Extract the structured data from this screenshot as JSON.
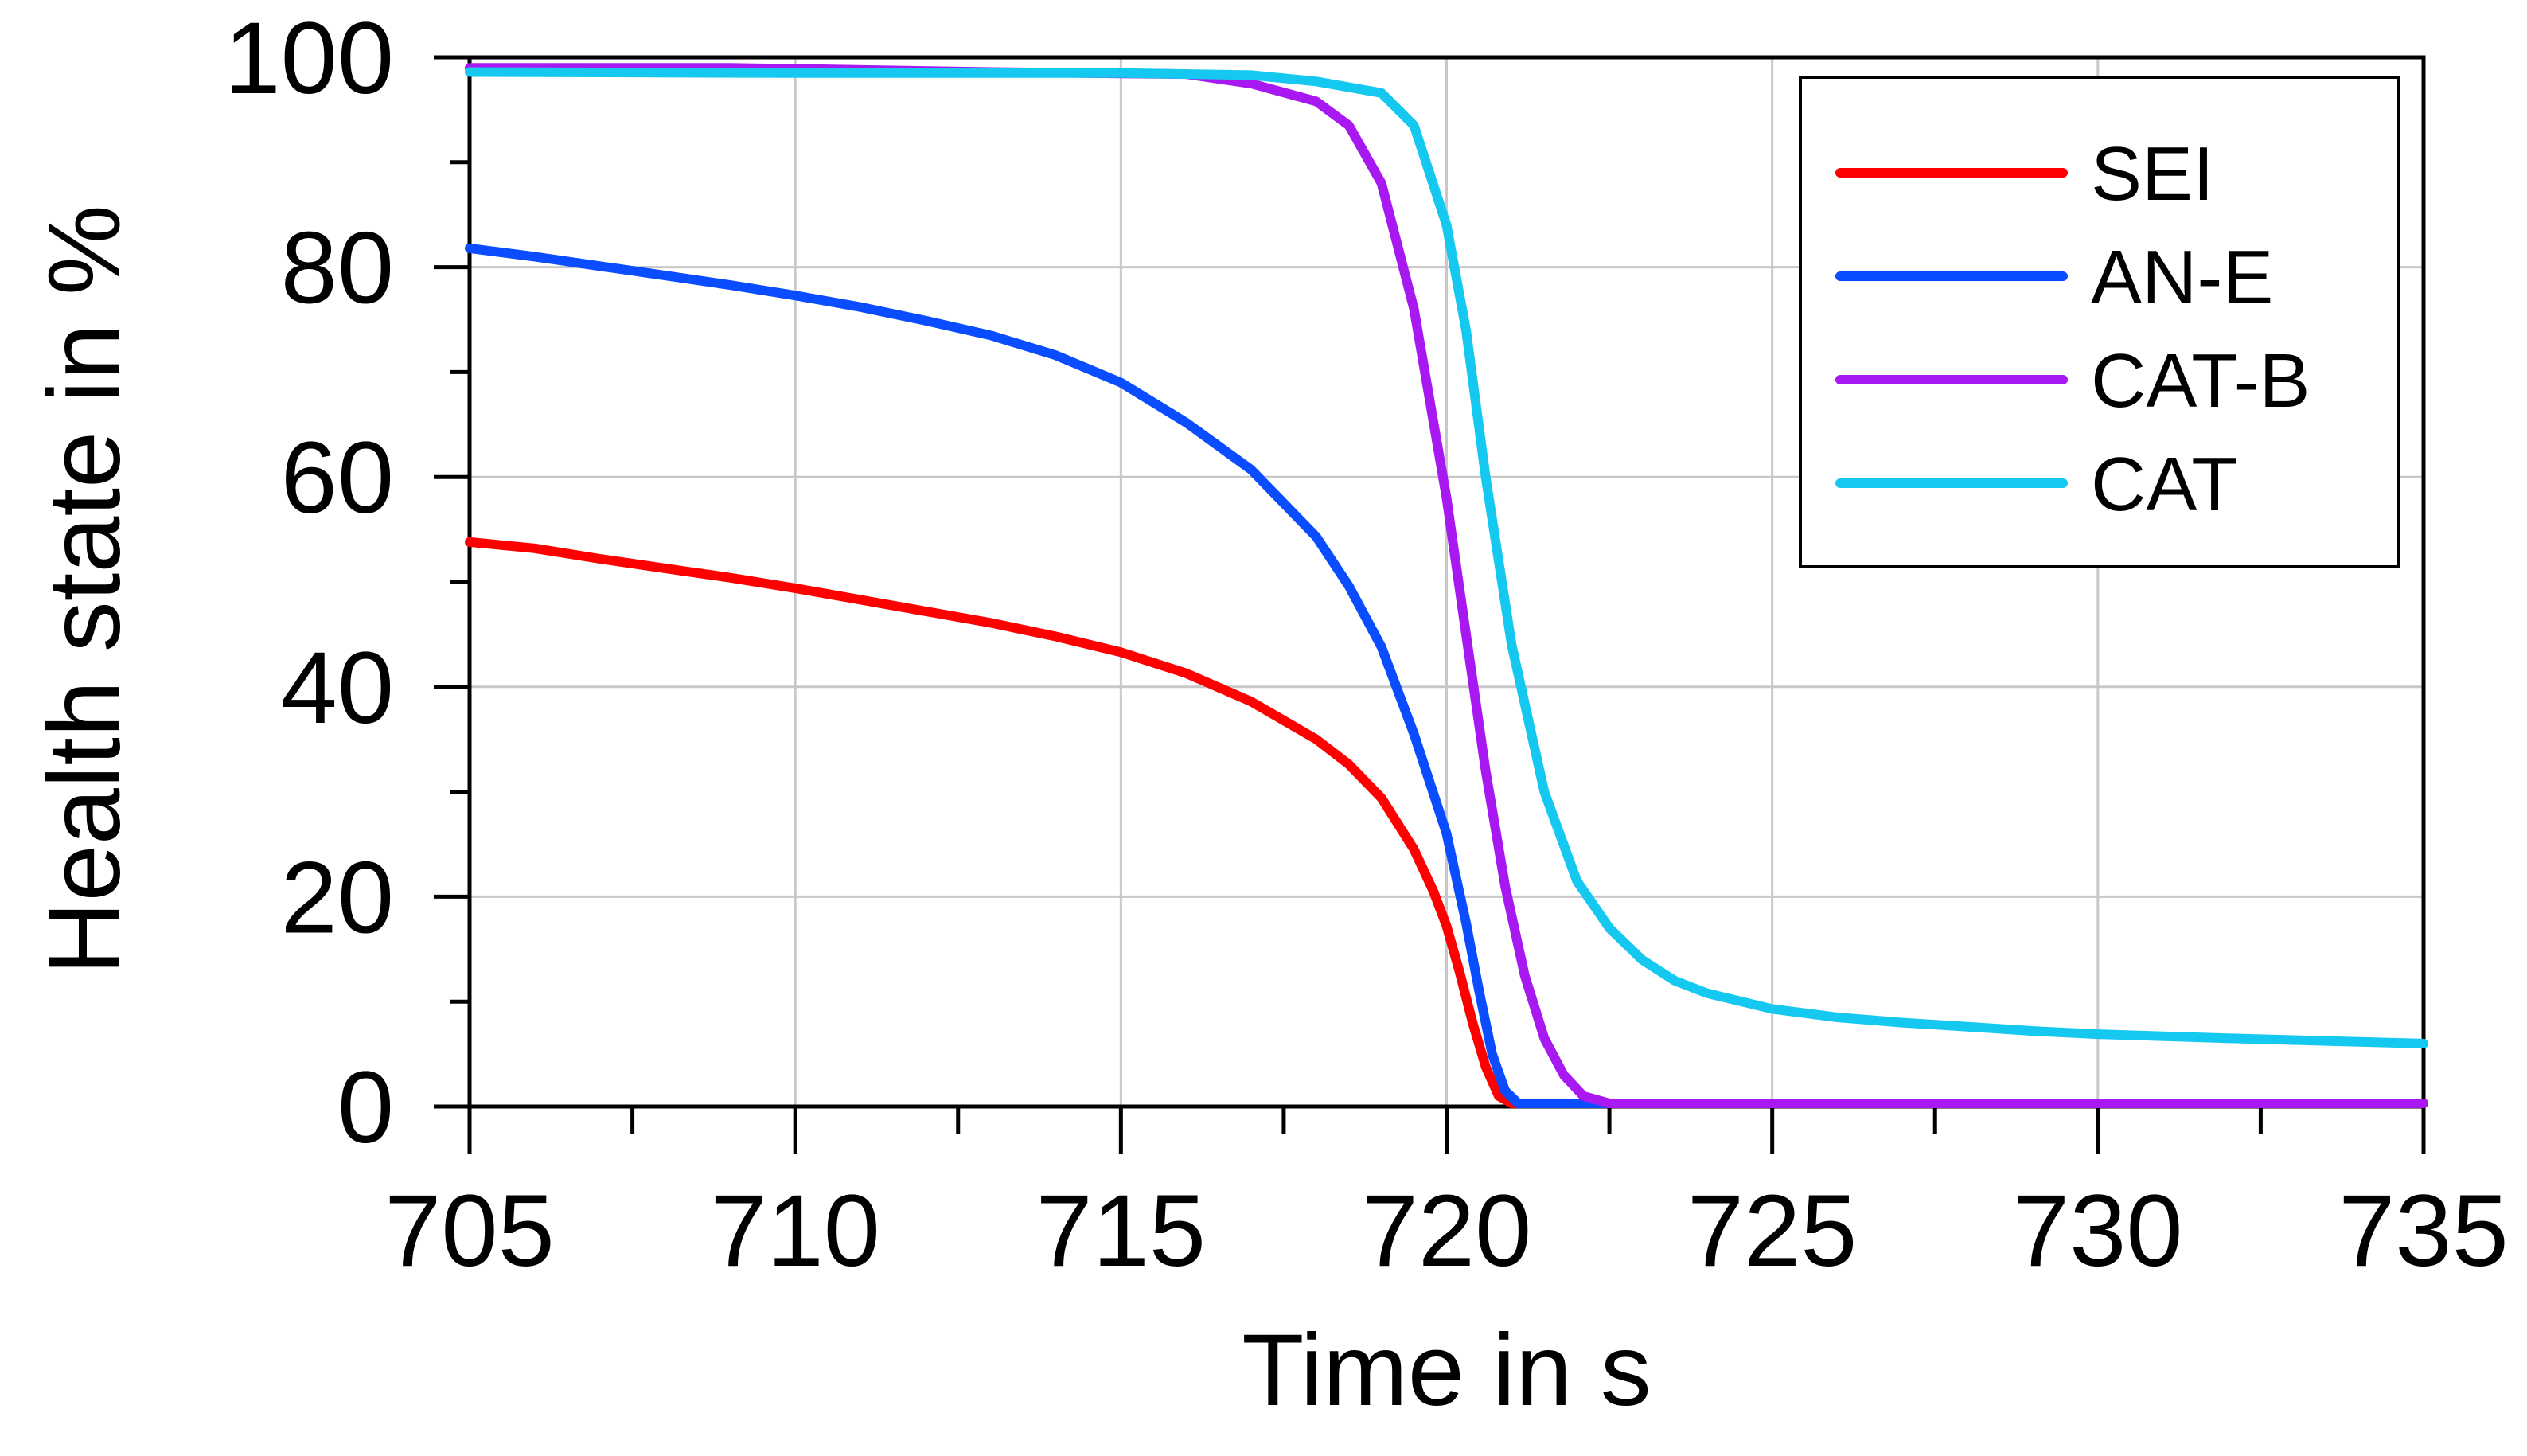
{
  "chart_data": {
    "type": "line",
    "title": "",
    "xlabel": "Time in s",
    "ylabel": "Health state in %",
    "xlim": [
      705,
      735
    ],
    "ylim": [
      0,
      100
    ],
    "x_ticks": [
      705,
      710,
      715,
      720,
      725,
      730,
      735
    ],
    "y_ticks": [
      0,
      20,
      40,
      60,
      80,
      100
    ],
    "grid": true,
    "legend_position": "top-right",
    "series": [
      {
        "name": "SEI",
        "color": "#ff0000",
        "points": [
          [
            705,
            53.8
          ],
          [
            706,
            53.2
          ],
          [
            707,
            52.2
          ],
          [
            708,
            51.3
          ],
          [
            709,
            50.4
          ],
          [
            710,
            49.4
          ],
          [
            711,
            48.3
          ],
          [
            712,
            47.2
          ],
          [
            713,
            46.1
          ],
          [
            714,
            44.8
          ],
          [
            715,
            43.3
          ],
          [
            716,
            41.3
          ],
          [
            717,
            38.6
          ],
          [
            718,
            35.0
          ],
          [
            718.5,
            32.6
          ],
          [
            719,
            29.4
          ],
          [
            719.5,
            24.5
          ],
          [
            719.8,
            20.5
          ],
          [
            720,
            17.2
          ],
          [
            720.2,
            12.8
          ],
          [
            720.4,
            8.0
          ],
          [
            720.6,
            3.8
          ],
          [
            720.8,
            1.0
          ],
          [
            721,
            0.3
          ],
          [
            722,
            0.3
          ],
          [
            735,
            0.3
          ]
        ]
      },
      {
        "name": "AN-E",
        "color": "#0a4cff",
        "points": [
          [
            705,
            81.8
          ],
          [
            706,
            81.0
          ],
          [
            707,
            80.1
          ],
          [
            708,
            79.2
          ],
          [
            709,
            78.3
          ],
          [
            710,
            77.3
          ],
          [
            711,
            76.2
          ],
          [
            712,
            74.9
          ],
          [
            713,
            73.5
          ],
          [
            714,
            71.6
          ],
          [
            715,
            69.0
          ],
          [
            716,
            65.2
          ],
          [
            717,
            60.7
          ],
          [
            718,
            54.3
          ],
          [
            718.5,
            49.6
          ],
          [
            719,
            43.8
          ],
          [
            719.5,
            35.5
          ],
          [
            720,
            26.0
          ],
          [
            720.3,
            17.5
          ],
          [
            720.5,
            11.0
          ],
          [
            720.7,
            5.0
          ],
          [
            720.9,
            1.5
          ],
          [
            721.1,
            0.3
          ],
          [
            722,
            0.3
          ],
          [
            735,
            0.3
          ]
        ]
      },
      {
        "name": "CAT-B",
        "color": "#a818f0",
        "points": [
          [
            705,
            99.0
          ],
          [
            709,
            99.0
          ],
          [
            713,
            98.6
          ],
          [
            716,
            98.4
          ],
          [
            717,
            97.5
          ],
          [
            718,
            95.8
          ],
          [
            718.5,
            93.5
          ],
          [
            719,
            88.0
          ],
          [
            719.5,
            76.0
          ],
          [
            720,
            58.0
          ],
          [
            720.3,
            45.0
          ],
          [
            720.6,
            32.0
          ],
          [
            720.9,
            21.0
          ],
          [
            721.2,
            12.5
          ],
          [
            721.5,
            6.5
          ],
          [
            721.8,
            3.0
          ],
          [
            722.1,
            1.0
          ],
          [
            722.5,
            0.3
          ],
          [
            735,
            0.3
          ]
        ]
      },
      {
        "name": "CAT",
        "color": "#15c8f0",
        "points": [
          [
            705,
            98.6
          ],
          [
            710,
            98.5
          ],
          [
            715,
            98.5
          ],
          [
            717,
            98.3
          ],
          [
            718,
            97.7
          ],
          [
            719,
            96.6
          ],
          [
            719.5,
            93.5
          ],
          [
            720,
            84.0
          ],
          [
            720.3,
            74.0
          ],
          [
            720.6,
            60.0
          ],
          [
            721,
            44.0
          ],
          [
            721.5,
            30.0
          ],
          [
            722,
            21.5
          ],
          [
            722.5,
            17.0
          ],
          [
            723,
            14.0
          ],
          [
            723.5,
            12.0
          ],
          [
            724,
            10.8
          ],
          [
            725,
            9.3
          ],
          [
            726,
            8.5
          ],
          [
            727,
            8.0
          ],
          [
            728,
            7.6
          ],
          [
            729,
            7.2
          ],
          [
            730,
            6.9
          ],
          [
            732,
            6.5
          ],
          [
            735,
            6.0
          ]
        ]
      }
    ]
  }
}
